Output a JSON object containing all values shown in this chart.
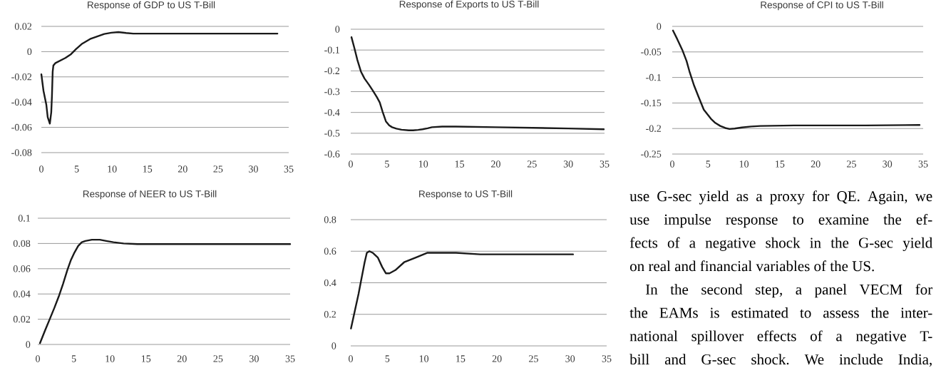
{
  "chart_data": [
    {
      "type": "line",
      "title": "Response of GDP to US T-Bill",
      "x": [
        0,
        0.3,
        0.7,
        0.9,
        1.2,
        1.4,
        1.5,
        1.6,
        1.7,
        2,
        2.7,
        3.4,
        4.2,
        4.9,
        5.7,
        6.9,
        7.9,
        8.9,
        9.9,
        10.9,
        12,
        13,
        20,
        25,
        30,
        33.4
      ],
      "values": [
        -0.018,
        -0.031,
        -0.042,
        -0.052,
        -0.057,
        -0.048,
        -0.035,
        -0.016,
        -0.011,
        -0.009,
        -0.007,
        -0.005,
        -0.002,
        0.002,
        0.006,
        0.01,
        0.012,
        0.014,
        0.015,
        0.0155,
        0.0148,
        0.0143,
        0.0143,
        0.0143,
        0.0143,
        0.0143
      ],
      "color": "#1a1a1a",
      "xlim": [
        0,
        35
      ],
      "ylim": [
        -0.08,
        0.02
      ],
      "xticks": [
        0,
        5,
        10,
        15,
        20,
        25,
        30,
        35
      ],
      "yticks": [
        -0.08,
        -0.06,
        -0.04,
        -0.02,
        0,
        0.02
      ],
      "grid": "y"
    },
    {
      "type": "line",
      "title": "Response of Exports to US T-Bill",
      "x": [
        0.1,
        0.5,
        0.9,
        1.4,
        1.9,
        2.5,
        3.05,
        3.6,
        4.0,
        4.4,
        4.85,
        5.3,
        5.7,
        6.3,
        7.0,
        8.0,
        8.6,
        9.3,
        9.9,
        10.6,
        11.2,
        12.6,
        14.5,
        20,
        25,
        30,
        34.9
      ],
      "values": [
        -0.038,
        -0.09,
        -0.146,
        -0.203,
        -0.237,
        -0.266,
        -0.295,
        -0.326,
        -0.352,
        -0.397,
        -0.443,
        -0.462,
        -0.471,
        -0.478,
        -0.483,
        -0.486,
        -0.486,
        -0.484,
        -0.481,
        -0.476,
        -0.471,
        -0.468,
        -0.468,
        -0.471,
        -0.474,
        -0.477,
        -0.481
      ],
      "color": "#1a1a1a",
      "xlim": [
        0,
        35
      ],
      "ylim": [
        -0.6,
        0
      ],
      "xticks": [
        0,
        5,
        10,
        15,
        20,
        25,
        30,
        35
      ],
      "yticks": [
        -0.6,
        -0.5,
        -0.4,
        -0.3,
        -0.2,
        -0.1,
        0
      ],
      "grid": "y"
    },
    {
      "type": "line",
      "title": "Response of CPI to US T-Bill",
      "x": [
        0.1,
        0.7,
        1.4,
        2.0,
        2.4,
        3.05,
        3.7,
        4.4,
        5.4,
        6.0,
        6.7,
        7.4,
        8.0,
        8.7,
        9.7,
        11,
        12.3,
        17,
        22,
        27,
        34.5
      ],
      "values": [
        -0.008,
        -0.025,
        -0.046,
        -0.068,
        -0.088,
        -0.116,
        -0.139,
        -0.163,
        -0.181,
        -0.189,
        -0.195,
        -0.199,
        -0.201,
        -0.2,
        -0.198,
        -0.196,
        -0.195,
        -0.194,
        -0.194,
        -0.194,
        -0.193
      ],
      "color": "#1a1a1a",
      "xlim": [
        0,
        35
      ],
      "ylim": [
        -0.25,
        0
      ],
      "xticks": [
        0,
        5,
        10,
        15,
        20,
        25,
        30,
        35
      ],
      "yticks": [
        -0.25,
        -0.2,
        -0.15,
        -0.1,
        -0.05,
        0
      ],
      "grid": "y"
    },
    {
      "type": "line",
      "title": "Response of NEER to US T-Bill",
      "x": [
        0.3,
        1.0,
        1.65,
        2.3,
        2.97,
        3.5,
        4.1,
        4.6,
        5.1,
        5.6,
        6.1,
        6.6,
        7.5,
        8.6,
        9.5,
        10.5,
        11.9,
        13.8,
        20,
        25,
        30,
        35
      ],
      "values": [
        0.001,
        0.011,
        0.02,
        0.029,
        0.039,
        0.048,
        0.059,
        0.067,
        0.073,
        0.078,
        0.081,
        0.082,
        0.083,
        0.083,
        0.082,
        0.081,
        0.08,
        0.0795,
        0.0795,
        0.0795,
        0.0795,
        0.0795
      ],
      "color": "#1a1a1a",
      "xlim": [
        0,
        35
      ],
      "ylim": [
        0,
        0.1
      ],
      "xticks": [
        0,
        5,
        10,
        15,
        20,
        25,
        30,
        35
      ],
      "yticks": [
        0,
        0.02,
        0.04,
        0.06,
        0.08,
        0.1
      ],
      "grid": "y"
    },
    {
      "type": "line",
      "title": "Response to US T-Bill",
      "x": [
        0.03,
        0.6,
        1.07,
        1.4,
        1.9,
        2.2,
        2.55,
        3.0,
        3.7,
        4.3,
        4.8,
        5.3,
        6.1,
        7.3,
        8.9,
        10.5,
        12.1,
        14.4,
        17.7,
        24,
        30.4
      ],
      "values": [
        0.11,
        0.23,
        0.33,
        0.41,
        0.53,
        0.59,
        0.6,
        0.59,
        0.56,
        0.5,
        0.46,
        0.46,
        0.48,
        0.53,
        0.56,
        0.59,
        0.59,
        0.59,
        0.58,
        0.58,
        0.58
      ],
      "color": "#1a1a1a",
      "xlim": [
        0,
        35
      ],
      "ylim": [
        0,
        0.8
      ],
      "xticks": [
        0,
        5,
        10,
        15,
        20,
        25,
        30,
        35
      ],
      "yticks": [
        0,
        0.2,
        0.4,
        0.6,
        0.8
      ],
      "grid": "y"
    },
    {
      "type": "other",
      "annotations": [
        "use G-sec yield as a proxy for QE. Again, we",
        "use impulse response to examine the ef-",
        "fects of a negative shock in the G-sec yield",
        "on real and financial variables of the US.",
        "In the second step, a panel VECM for",
        "the EAMs is estimated to assess the inter-",
        "national spillover effects of a negative T-",
        "bill and G-sec shock. We include India,"
      ]
    }
  ]
}
